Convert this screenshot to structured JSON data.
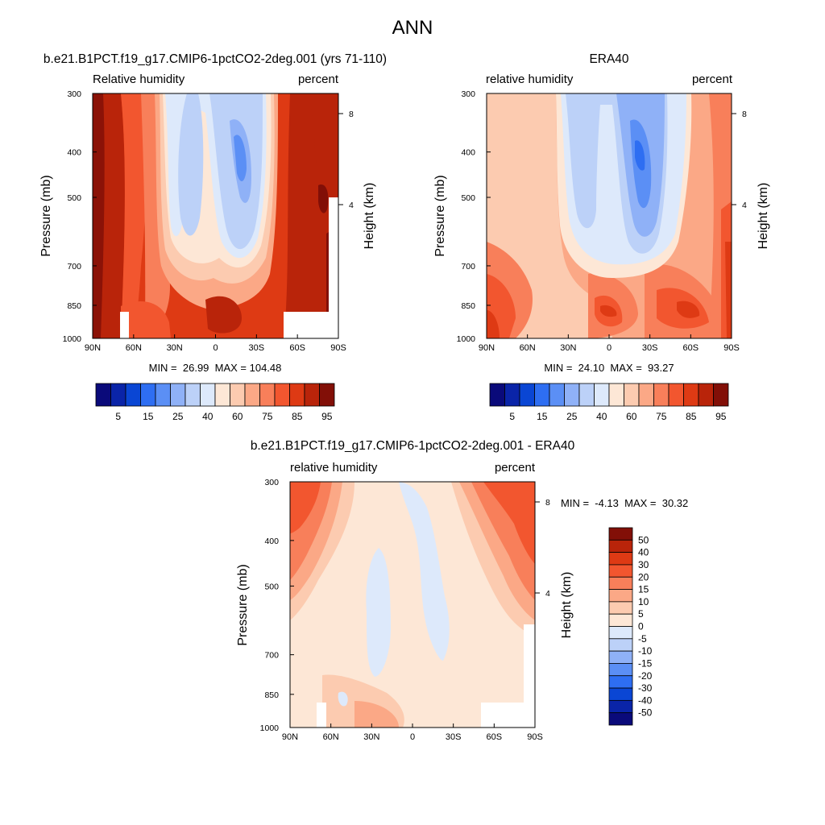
{
  "page_title": "ANN",
  "chart_data": [
    {
      "type": "heatmap",
      "title": "b.e21.B1PCT.f19_g17.CMIP6-1pctCO2-2deg.001 (yrs 71-110)",
      "left_label": "Relative humidity",
      "right_label": "percent",
      "ylabel": "Pressure (mb)",
      "ylabel_right": "Height (km)",
      "x_ticks": [
        "90N",
        "60N",
        "30N",
        "0",
        "30S",
        "60S",
        "90S"
      ],
      "y_ticks": [
        "300",
        "400",
        "500",
        "700",
        "850",
        "1000"
      ],
      "height_ticks": [
        "8",
        "4"
      ],
      "stats": "MIN =  26.99  MAX = 104.48",
      "min": 26.99,
      "max": 104.48,
      "colorbar_labels": [
        "5",
        "15",
        "25",
        "40",
        "60",
        "75",
        "85",
        "95"
      ],
      "colorbar_colors": [
        "#0a0a7a",
        "#0a24a8",
        "#0a46d4",
        "#2e6ef2",
        "#5b8ff5",
        "#8fb1f7",
        "#bcd1f8",
        "#dde9fb",
        "#fde7d6",
        "#fccbb0",
        "#fba886",
        "#f87f5a",
        "#f2562f",
        "#de3a14",
        "#b9240a",
        "#820f07"
      ]
    },
    {
      "type": "heatmap",
      "title": "ERA40",
      "left_label": "relative humidity",
      "right_label": "percent",
      "ylabel": "Pressure (mb)",
      "ylabel_right": "Height (km)",
      "x_ticks": [
        "90N",
        "60N",
        "30N",
        "0",
        "30S",
        "60S",
        "90S"
      ],
      "y_ticks": [
        "300",
        "400",
        "500",
        "700",
        "850",
        "1000"
      ],
      "height_ticks": [
        "8",
        "4"
      ],
      "stats": "MIN =  24.10  MAX =  93.27",
      "min": 24.1,
      "max": 93.27,
      "colorbar_labels": [
        "5",
        "15",
        "25",
        "40",
        "60",
        "75",
        "85",
        "95"
      ],
      "colorbar_colors": [
        "#0a0a7a",
        "#0a24a8",
        "#0a46d4",
        "#2e6ef2",
        "#5b8ff5",
        "#8fb1f7",
        "#bcd1f8",
        "#dde9fb",
        "#fde7d6",
        "#fccbb0",
        "#fba886",
        "#f87f5a",
        "#f2562f",
        "#de3a14",
        "#b9240a",
        "#820f07"
      ]
    },
    {
      "type": "heatmap",
      "title": "b.e21.B1PCT.f19_g17.CMIP6-1pctCO2-2deg.001 - ERA40",
      "left_label": "relative humidity",
      "right_label": "percent",
      "ylabel": "Pressure (mb)",
      "ylabel_right": "Height (km)",
      "x_ticks": [
        "90N",
        "60N",
        "30N",
        "0",
        "30S",
        "60S",
        "90S"
      ],
      "y_ticks": [
        "300",
        "400",
        "500",
        "700",
        "850",
        "1000"
      ],
      "height_ticks": [
        "8",
        "4"
      ],
      "stats": "MIN =  -4.13  MAX =  30.32",
      "min": -4.13,
      "max": 30.32,
      "colorbar_labels": [
        "50",
        "40",
        "30",
        "20",
        "15",
        "10",
        "5",
        "0",
        "-5",
        "-10",
        "-15",
        "-20",
        "-30",
        "-40",
        "-50"
      ],
      "colorbar_colors": [
        "#820f07",
        "#b9240a",
        "#de3a14",
        "#f2562f",
        "#f87f5a",
        "#fba886",
        "#fccbb0",
        "#fde7d6",
        "#dde9fb",
        "#bcd1f8",
        "#8fb1f7",
        "#5b8ff5",
        "#2e6ef2",
        "#0a46d4",
        "#0a24a8",
        "#0a0a7a"
      ]
    }
  ]
}
